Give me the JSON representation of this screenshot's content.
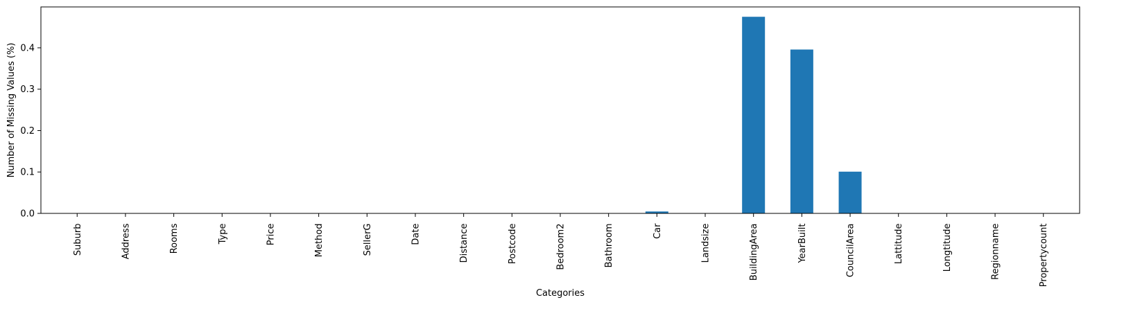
{
  "chart_data": {
    "type": "bar",
    "title": "",
    "xlabel": "Categories",
    "ylabel": "Number of Missing Values (%)",
    "categories": [
      "Suburb",
      "Address",
      "Rooms",
      "Type",
      "Price",
      "Method",
      "SellerG",
      "Date",
      "Distance",
      "Postcode",
      "Bedroom2",
      "Bathroom",
      "Car",
      "Landsize",
      "BuildingArea",
      "YearBuilt",
      "CouncilArea",
      "Lattitude",
      "Longtitude",
      "Regionname",
      "Propertycount"
    ],
    "values": [
      0,
      0,
      0,
      0,
      0,
      0,
      0,
      0,
      0,
      0,
      0,
      0,
      0.0046,
      0,
      0.4749,
      0.3958,
      0.1008,
      0,
      0,
      0,
      0
    ],
    "ylim": [
      0,
      0.4987
    ],
    "yticks": [
      0.0,
      0.1,
      0.2,
      0.3,
      0.4
    ],
    "ytick_labels": [
      "0.0",
      "0.1",
      "0.2",
      "0.3",
      "0.4"
    ],
    "grid": false,
    "legend": "none",
    "colors": {
      "bar": "#1f77b4",
      "axes": "#000000"
    }
  }
}
